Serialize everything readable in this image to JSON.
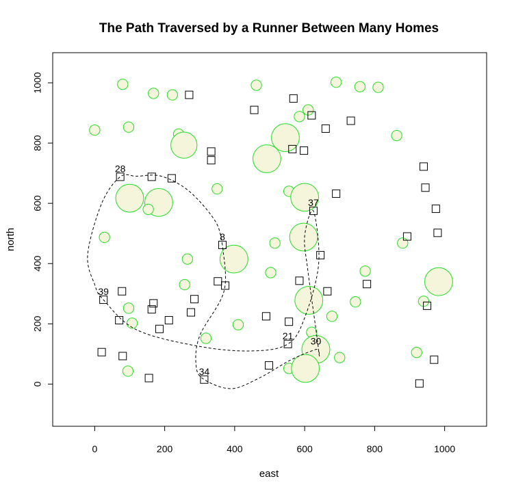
{
  "chart_data": {
    "type": "scatter",
    "title": "The Path Traversed by a Runner Between Many Homes",
    "xlabel": "east",
    "ylabel": "north",
    "xlim": [
      -120,
      1120
    ],
    "ylim": [
      -140,
      1100
    ],
    "x_ticks": [
      0,
      200,
      400,
      600,
      800,
      1000
    ],
    "y_ticks": [
      0,
      200,
      400,
      600,
      800,
      1000
    ],
    "x_tick_labels": [
      "0",
      "200",
      "400",
      "600",
      "800",
      "1000"
    ],
    "y_tick_labels": [
      "0",
      "200",
      "400",
      "600",
      "800",
      "1000"
    ],
    "grid": false,
    "colors": {
      "circle_stroke": "#22dd22",
      "circle_fill": "#f5f5dc",
      "square_stroke": "#000000",
      "path": "#000000"
    },
    "homes": [
      {
        "x": 270,
        "y": 960
      },
      {
        "x": 456,
        "y": 910
      },
      {
        "x": 568,
        "y": 948
      },
      {
        "x": 620,
        "y": 892
      },
      {
        "x": 660,
        "y": 848
      },
      {
        "x": 732,
        "y": 874
      },
      {
        "x": 598,
        "y": 775
      },
      {
        "x": 565,
        "y": 780
      },
      {
        "x": 333,
        "y": 772
      },
      {
        "x": 333,
        "y": 743
      },
      {
        "x": 940,
        "y": 722
      },
      {
        "x": 945,
        "y": 652
      },
      {
        "x": 975,
        "y": 582
      },
      {
        "x": 980,
        "y": 502
      },
      {
        "x": 893,
        "y": 490
      },
      {
        "x": 690,
        "y": 632
      },
      {
        "x": 625,
        "y": 575
      },
      {
        "x": 73,
        "y": 688
      },
      {
        "x": 163,
        "y": 688
      },
      {
        "x": 220,
        "y": 683
      },
      {
        "x": 365,
        "y": 462
      },
      {
        "x": 645,
        "y": 428
      },
      {
        "x": 352,
        "y": 341
      },
      {
        "x": 373,
        "y": 327
      },
      {
        "x": 585,
        "y": 343
      },
      {
        "x": 665,
        "y": 308
      },
      {
        "x": 778,
        "y": 332
      },
      {
        "x": 950,
        "y": 260
      },
      {
        "x": 25,
        "y": 280
      },
      {
        "x": 78,
        "y": 308
      },
      {
        "x": 168,
        "y": 268
      },
      {
        "x": 285,
        "y": 282
      },
      {
        "x": 163,
        "y": 248
      },
      {
        "x": 275,
        "y": 238
      },
      {
        "x": 70,
        "y": 212
      },
      {
        "x": 212,
        "y": 212
      },
      {
        "x": 185,
        "y": 183
      },
      {
        "x": 490,
        "y": 225
      },
      {
        "x": 555,
        "y": 207
      },
      {
        "x": 552,
        "y": 133
      },
      {
        "x": 20,
        "y": 106
      },
      {
        "x": 80,
        "y": 93
      },
      {
        "x": 498,
        "y": 62
      },
      {
        "x": 155,
        "y": 20
      },
      {
        "x": 313,
        "y": 15
      },
      {
        "x": 970,
        "y": 81
      },
      {
        "x": 928,
        "y": 2
      }
    ],
    "circles": [
      {
        "x": 80,
        "y": 995,
        "r": 3
      },
      {
        "x": 168,
        "y": 965,
        "r": 3
      },
      {
        "x": 222,
        "y": 960,
        "r": 3
      },
      {
        "x": 462,
        "y": 992,
        "r": 3
      },
      {
        "x": 690,
        "y": 1002,
        "r": 3
      },
      {
        "x": 758,
        "y": 987,
        "r": 3
      },
      {
        "x": 810,
        "y": 985,
        "r": 3
      },
      {
        "x": 0,
        "y": 843,
        "r": 3
      },
      {
        "x": 97,
        "y": 853,
        "r": 3
      },
      {
        "x": 240,
        "y": 830,
        "r": 3
      },
      {
        "x": 255,
        "y": 793,
        "r": 7.5
      },
      {
        "x": 545,
        "y": 818,
        "r": 8
      },
      {
        "x": 492,
        "y": 748,
        "r": 8
      },
      {
        "x": 610,
        "y": 910,
        "r": 3
      },
      {
        "x": 585,
        "y": 888,
        "r": 3
      },
      {
        "x": 863,
        "y": 825,
        "r": 3
      },
      {
        "x": 350,
        "y": 648,
        "r": 3
      },
      {
        "x": 555,
        "y": 640,
        "r": 3
      },
      {
        "x": 600,
        "y": 620,
        "r": 8
      },
      {
        "x": 100,
        "y": 617,
        "r": 8
      },
      {
        "x": 183,
        "y": 603,
        "r": 8
      },
      {
        "x": 153,
        "y": 580,
        "r": 3
      },
      {
        "x": 28,
        "y": 487,
        "r": 3
      },
      {
        "x": 597,
        "y": 488,
        "r": 8
      },
      {
        "x": 515,
        "y": 468,
        "r": 3
      },
      {
        "x": 880,
        "y": 468,
        "r": 3
      },
      {
        "x": 265,
        "y": 415,
        "r": 3
      },
      {
        "x": 398,
        "y": 415,
        "r": 8
      },
      {
        "x": 503,
        "y": 370,
        "r": 3
      },
      {
        "x": 773,
        "y": 375,
        "r": 3
      },
      {
        "x": 983,
        "y": 340,
        "r": 8
      },
      {
        "x": 257,
        "y": 330,
        "r": 3
      },
      {
        "x": 612,
        "y": 278,
        "r": 8
      },
      {
        "x": 745,
        "y": 273,
        "r": 3
      },
      {
        "x": 940,
        "y": 275,
        "r": 3
      },
      {
        "x": 97,
        "y": 252,
        "r": 3
      },
      {
        "x": 107,
        "y": 202,
        "r": 3
      },
      {
        "x": 410,
        "y": 197,
        "r": 3
      },
      {
        "x": 678,
        "y": 225,
        "r": 3
      },
      {
        "x": 318,
        "y": 152,
        "r": 3
      },
      {
        "x": 620,
        "y": 172,
        "r": 3
      },
      {
        "x": 632,
        "y": 115,
        "r": 8
      },
      {
        "x": 920,
        "y": 105,
        "r": 3
      },
      {
        "x": 700,
        "y": 88,
        "r": 3
      },
      {
        "x": 95,
        "y": 43,
        "r": 3
      },
      {
        "x": 555,
        "y": 52,
        "r": 3
      },
      {
        "x": 602,
        "y": 52,
        "r": 8
      }
    ],
    "labels": [
      {
        "text": "28",
        "x": 73,
        "y": 688
      },
      {
        "text": "8",
        "x": 365,
        "y": 462
      },
      {
        "text": "37",
        "x": 625,
        "y": 575
      },
      {
        "text": "39",
        "x": 25,
        "y": 280
      },
      {
        "text": "21",
        "x": 552,
        "y": 133
      },
      {
        "text": "30",
        "x": 632,
        "y": 115
      },
      {
        "text": "34",
        "x": 313,
        "y": 15
      }
    ],
    "path": [
      {
        "x": 365,
        "y": 462
      },
      {
        "x": 345,
        "y": 540
      },
      {
        "x": 270,
        "y": 640
      },
      {
        "x": 190,
        "y": 690
      },
      {
        "x": 120,
        "y": 690
      },
      {
        "x": 73,
        "y": 688
      },
      {
        "x": 20,
        "y": 600
      },
      {
        "x": -20,
        "y": 430
      },
      {
        "x": 0,
        "y": 330
      },
      {
        "x": 25,
        "y": 280
      },
      {
        "x": 120,
        "y": 180
      },
      {
        "x": 300,
        "y": 125
      },
      {
        "x": 450,
        "y": 110
      },
      {
        "x": 552,
        "y": 133
      },
      {
        "x": 600,
        "y": 220
      },
      {
        "x": 640,
        "y": 400
      },
      {
        "x": 625,
        "y": 575
      },
      {
        "x": 600,
        "y": 490
      },
      {
        "x": 610,
        "y": 370
      },
      {
        "x": 640,
        "y": 110
      },
      {
        "x": 632,
        "y": 115
      },
      {
        "x": 560,
        "y": 80
      },
      {
        "x": 470,
        "y": 20
      },
      {
        "x": 390,
        "y": -15
      },
      {
        "x": 313,
        "y": 15
      },
      {
        "x": 290,
        "y": 60
      },
      {
        "x": 300,
        "y": 160
      },
      {
        "x": 370,
        "y": 310
      },
      {
        "x": 365,
        "y": 462
      }
    ]
  }
}
